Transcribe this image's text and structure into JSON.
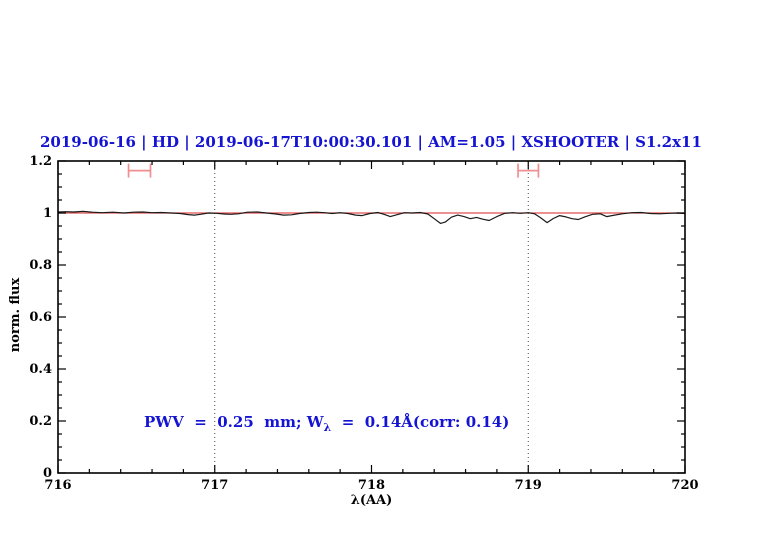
{
  "chart_data": {
    "type": "line",
    "title": "2019-06-16 | HD | 2019-06-17T10:00:30.101 | AM=1.05 | XSHOOTER | S1.2x11",
    "xlabel": "λ(AA)",
    "ylabel": "norm. flux",
    "xlim": [
      716,
      720
    ],
    "ylim": [
      0,
      1.2
    ],
    "x_major_ticks": [
      716,
      717,
      718,
      719,
      720
    ],
    "x_tick_labels": [
      "716",
      "717",
      "718",
      "719",
      "720"
    ],
    "x_minor_step": 0.2,
    "y_major_ticks": [
      0,
      0.2,
      0.4,
      0.6,
      0.8,
      1,
      1.2
    ],
    "y_tick_labels": [
      "0",
      "0.2",
      "0.4",
      "0.6",
      "0.8",
      "1",
      "1.2"
    ],
    "y_minor_step": 0.05,
    "grid": "dotted-vertical-lines",
    "dotted_vlines": [
      717,
      719
    ],
    "legend": "none",
    "annotation": {
      "prefix": "PWV  =  0.25  mm; W",
      "subscript": "λ",
      "suffix": "  =  0.14Å(corr: 0.14)",
      "x": 717.55,
      "y": 0.19
    },
    "range_markers": [
      {
        "x_center": 716.52,
        "half_width": 0.07,
        "y": 1.163
      },
      {
        "x_center": 719.0,
        "half_width": 0.065,
        "y": 1.163
      }
    ],
    "series": [
      {
        "name": "observed-spectrum",
        "color": "#1a1a1a",
        "x": [
          716.0,
          716.05,
          716.1,
          716.16,
          716.22,
          716.28,
          716.35,
          716.42,
          716.48,
          716.54,
          716.6,
          716.66,
          716.72,
          716.78,
          716.83,
          716.87,
          716.91,
          716.96,
          717.01,
          717.06,
          717.1,
          717.15,
          717.21,
          717.27,
          717.33,
          717.39,
          717.44,
          717.49,
          717.54,
          717.6,
          717.65,
          717.7,
          717.75,
          717.8,
          717.85,
          717.9,
          717.94,
          717.99,
          718.04,
          718.08,
          718.12,
          718.16,
          718.21,
          718.26,
          718.31,
          718.36,
          718.4,
          718.44,
          718.47,
          718.51,
          718.55,
          718.59,
          718.63,
          718.67,
          718.71,
          718.75,
          718.8,
          718.85,
          718.9,
          718.95,
          719.0,
          719.04,
          719.08,
          719.12,
          719.16,
          719.2,
          719.24,
          719.28,
          719.32,
          719.36,
          719.41,
          719.46,
          719.5,
          719.55,
          719.6,
          719.66,
          719.72,
          719.78,
          719.84,
          719.9,
          719.95,
          720.0
        ],
        "y": [
          1.004,
          1.005,
          1.004,
          1.006,
          1.003,
          1.001,
          1.003,
          1.0,
          1.003,
          1.004,
          1.001,
          1.002,
          1.0,
          0.998,
          0.994,
          0.992,
          0.995,
          1.0,
          0.999,
          0.996,
          0.995,
          0.997,
          1.003,
          1.004,
          1.0,
          0.996,
          0.992,
          0.993,
          0.998,
          1.002,
          1.003,
          1.001,
          0.998,
          1.001,
          0.998,
          0.992,
          0.99,
          0.998,
          1.002,
          0.995,
          0.986,
          0.993,
          1.001,
          1.0,
          1.002,
          0.996,
          0.978,
          0.96,
          0.965,
          0.984,
          0.992,
          0.986,
          0.978,
          0.983,
          0.976,
          0.971,
          0.986,
          0.999,
          1.001,
          0.999,
          1.001,
          0.997,
          0.981,
          0.963,
          0.979,
          0.99,
          0.985,
          0.978,
          0.975,
          0.985,
          0.995,
          0.997,
          0.986,
          0.992,
          0.997,
          1.001,
          1.002,
          0.998,
          0.997,
          0.999,
          1.0,
          0.998
        ]
      },
      {
        "name": "model-continuum",
        "color": "#e05050",
        "x": [
          716,
          720
        ],
        "y": [
          1.0,
          1.0
        ]
      }
    ],
    "colors": {
      "accent_text": "#1414d2",
      "marker": "#ef8f8f",
      "dotted_line": "#444444",
      "axis": "#000000"
    }
  }
}
